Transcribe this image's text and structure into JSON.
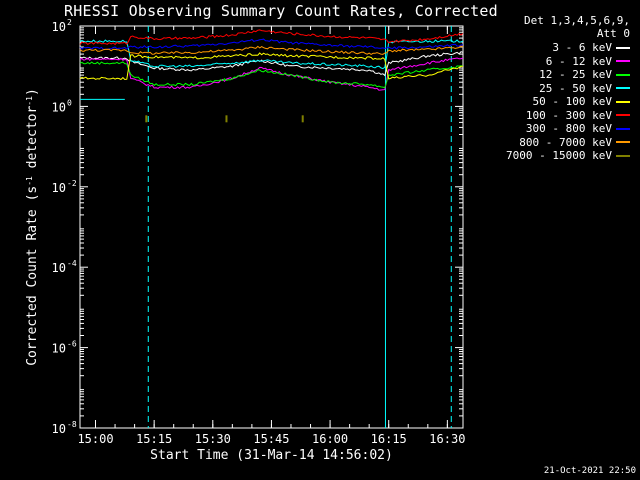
{
  "chart_data": {
    "type": "line",
    "title": "RHESSI Observing Summary Count Rates, Corrected",
    "xlabel": "Start Time (31-Mar-14 14:56:02)",
    "ylabel_main": "Corrected Count Rate (s",
    "ylabel_sup1": "-1",
    "ylabel_mid": " detector",
    "ylabel_sup2": "-1",
    "ylabel_end": ")",
    "yscale": "log",
    "ylim": [
      1e-08,
      100
    ],
    "xlim": [
      "14:56:02",
      "16:34:00"
    ],
    "x_ticks": [
      "15:00",
      "15:15",
      "15:30",
      "15:45",
      "16:00",
      "16:15",
      "16:30"
    ],
    "y_ticks": [
      {
        "base": "10",
        "exp": "2",
        "value": 100
      },
      {
        "base": "10",
        "exp": "0",
        "value": 1
      },
      {
        "base": "10",
        "exp": "-2",
        "value": 0.01
      },
      {
        "base": "10",
        "exp": "-4",
        "value": 0.0001
      },
      {
        "base": "10",
        "exp": "-6",
        "value": 1e-06
      },
      {
        "base": "10",
        "exp": "-8",
        "value": 1e-08
      }
    ],
    "legend_header": "Det 1,3,4,5,6,9,",
    "legend_att": "Att 0",
    "legend_position": "right",
    "vertical_markers": [
      {
        "time": "15:13:30",
        "style": "dashed",
        "color": "#00ffff"
      },
      {
        "time": "16:14:10",
        "style": "solid",
        "color": "#00ffff"
      },
      {
        "time": "16:31:00",
        "style": "dashed",
        "color": "#00ffff"
      }
    ],
    "series": [
      {
        "name": "3 - 6 keV",
        "color": "#ffffff",
        "x": [
          "14:56:02",
          "15:08",
          "15:09",
          "15:15",
          "15:25",
          "15:35",
          "15:42",
          "15:50",
          "16:00",
          "16:10",
          "16:14",
          "16:15",
          "16:25",
          "16:34"
        ],
        "values": [
          16,
          16,
          13,
          9,
          8,
          10,
          14,
          10,
          9,
          8,
          6,
          12,
          18,
          22
        ]
      },
      {
        "name": "6 - 12 keV",
        "color": "#ff00ff",
        "x": [
          "14:56:02",
          "15:08",
          "15:09",
          "15:15",
          "15:25",
          "15:35",
          "15:42",
          "15:50",
          "16:00",
          "16:10",
          "16:14",
          "16:15",
          "16:25",
          "16:34"
        ],
        "values": [
          15,
          15,
          5,
          3,
          3,
          5,
          9,
          6,
          4,
          3,
          2.5,
          8,
          12,
          16
        ]
      },
      {
        "name": "12 - 25 keV",
        "color": "#00ff00",
        "x": [
          "14:56:02",
          "15:08",
          "15:09",
          "15:15",
          "15:25",
          "15:35",
          "15:42",
          "15:50",
          "16:00",
          "16:10",
          "16:14",
          "16:15",
          "16:25",
          "16:34"
        ],
        "values": [
          12,
          12,
          6,
          3.5,
          3.5,
          5,
          8,
          6,
          4,
          3.5,
          3,
          6,
          8,
          10
        ]
      },
      {
        "name": "25 - 50 keV",
        "color": "#00ffff",
        "x": [
          "14:56:02",
          "15:08",
          "15:09",
          "15:15",
          "15:25",
          "15:35",
          "15:42",
          "15:50",
          "16:00",
          "16:10",
          "16:14",
          "16:15",
          "16:25",
          "16:34"
        ],
        "values": [
          42,
          42,
          14,
          10,
          10,
          12,
          14,
          12,
          11,
          10,
          9,
          40,
          42,
          42
        ]
      },
      {
        "name": "50 - 100 keV",
        "color": "#ffff00",
        "x": [
          "14:56:02",
          "15:08",
          "15:09",
          "15:15",
          "15:25",
          "15:35",
          "15:42",
          "15:50",
          "16:00",
          "16:10",
          "16:14",
          "16:15",
          "16:25",
          "16:34"
        ],
        "values": [
          5,
          5,
          18,
          17,
          16,
          18,
          20,
          18,
          17,
          16,
          15,
          5,
          6,
          10
        ]
      },
      {
        "name": "100 - 300 keV",
        "color": "#ff0000",
        "x": [
          "14:56:02",
          "15:08",
          "15:09",
          "15:15",
          "15:25",
          "15:35",
          "15:42",
          "15:50",
          "16:00",
          "16:10",
          "16:14",
          "16:15",
          "16:25",
          "16:34"
        ],
        "values": [
          37,
          37,
          55,
          48,
          50,
          60,
          78,
          65,
          55,
          50,
          45,
          40,
          48,
          65
        ]
      },
      {
        "name": "300 - 800 keV",
        "color": "#0000ff",
        "x": [
          "14:56:02",
          "15:08",
          "15:09",
          "15:15",
          "15:25",
          "15:35",
          "15:42",
          "15:50",
          "16:00",
          "16:10",
          "16:14",
          "16:15",
          "16:25",
          "16:34"
        ],
        "values": [
          28,
          28,
          30,
          30,
          32,
          38,
          46,
          38,
          33,
          30,
          28,
          28,
          30,
          34
        ]
      },
      {
        "name": "800 - 7000 keV",
        "color": "#ff9900",
        "x": [
          "14:56:02",
          "15:08",
          "15:09",
          "15:15",
          "15:25",
          "15:35",
          "15:42",
          "15:50",
          "16:00",
          "16:10",
          "16:14",
          "16:15",
          "16:25",
          "16:34"
        ],
        "values": [
          25,
          25,
          22,
          21,
          22,
          25,
          30,
          26,
          23,
          21,
          20,
          24,
          26,
          30
        ]
      },
      {
        "name": "7000 - 15000 keV",
        "color": "#808000",
        "x": [
          "15:13:00",
          "15:33:30",
          "15:53:00"
        ],
        "values": [
          0.6,
          0.6,
          0.6
        ]
      }
    ]
  }
}
